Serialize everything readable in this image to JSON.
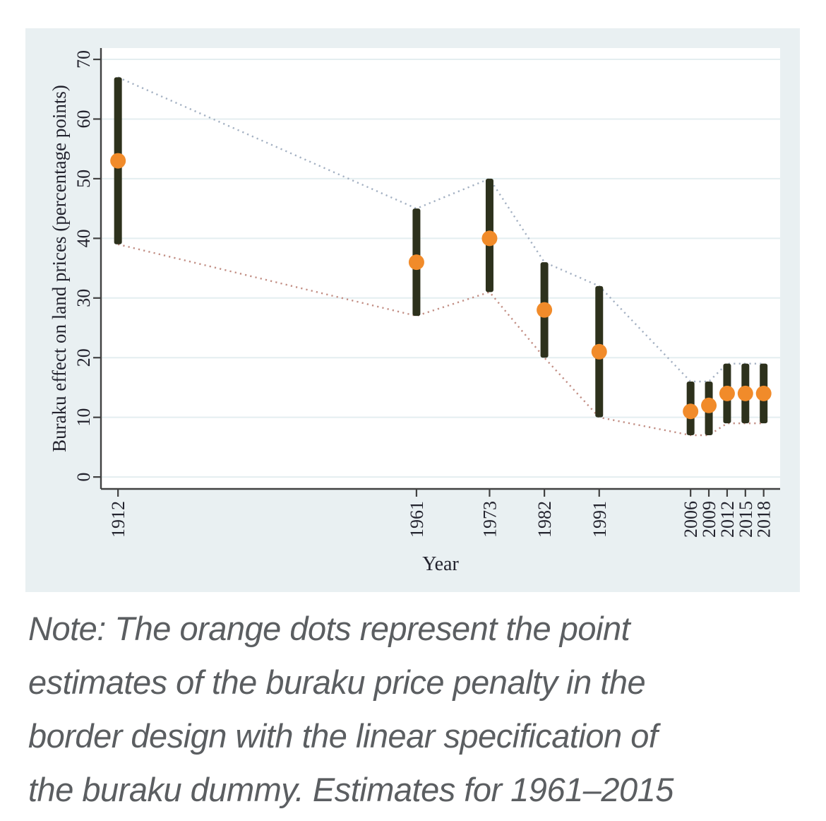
{
  "chart_data": {
    "type": "scatter",
    "subtype": "point-estimates-with-confidence-intervals",
    "title": "",
    "xlabel": "Year",
    "ylabel": "Buraku effect on land prices (percentage points)",
    "x": [
      1912,
      1961,
      1973,
      1982,
      1991,
      2006,
      2009,
      2012,
      2015,
      2018
    ],
    "series": [
      {
        "name": "point estimate",
        "values": [
          53,
          36,
          40,
          28,
          21,
          11,
          12,
          14,
          14,
          14
        ]
      },
      {
        "name": "ci lower bound",
        "values": [
          39,
          27,
          31,
          20,
          10,
          7,
          7,
          9,
          9,
          9
        ]
      },
      {
        "name": "ci upper bound",
        "values": [
          67,
          45,
          50,
          36,
          32,
          16,
          16,
          19,
          19,
          19
        ]
      }
    ],
    "yticks": [
      0,
      10,
      20,
      30,
      40,
      50,
      60,
      70
    ],
    "ylim": [
      -2,
      71.9
    ],
    "xlim": [
      1909.2,
      2020.7
    ],
    "grid": true,
    "legend": "none",
    "colors": {
      "point_estimate": "#f18b2a",
      "ci_bar": "#2d311c",
      "upper_connector": "#a3b0c2",
      "lower_connector": "#c28e84",
      "gridline": "#e4eef0",
      "axis": "#414141",
      "tick_label": "#23232e",
      "panel_background": "#e9f0f2",
      "plot_background": "#ffffff"
    }
  },
  "note": {
    "color": "#5b5e61",
    "lines": [
      "Note: The orange dots represent the point",
      "estimates of the buraku price penalty in the",
      "border design with the linear specification of",
      "the buraku dummy. Estimates for 1961–2015"
    ]
  }
}
